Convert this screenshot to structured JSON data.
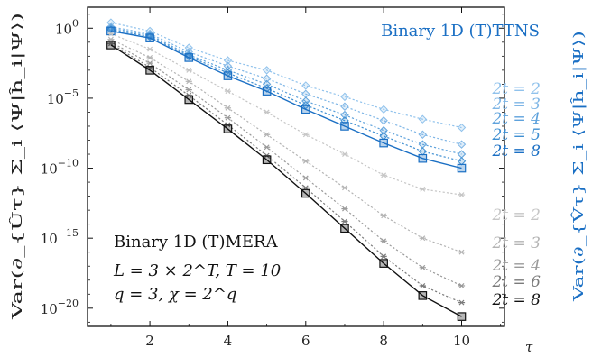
{
  "chart_data": {
    "type": "line",
    "xlabel": "τ",
    "ylabel_left": "Var(∂_{Ûτ} Σ_i ⟨Ψ|ĥ_i|Ψ⟩)",
    "ylabel_right": "Var(∂_{V̂τ} Σ_i ⟨Ψ|ĥ_i|Ψ⟩)",
    "xlim": [
      0.4,
      11.1
    ],
    "ylim_log10": [
      -21.3,
      1.5
    ],
    "log_y": true,
    "x_ticks": [
      2,
      4,
      6,
      8,
      10
    ],
    "y_ticks": [
      {
        "exp": 0,
        "label_base": "10",
        "label_exp": "0"
      },
      {
        "exp": -5,
        "label_base": "10",
        "label_exp": "−5"
      },
      {
        "exp": -10,
        "label_base": "10",
        "label_exp": "−10"
      },
      {
        "exp": -15,
        "label_base": "10",
        "label_exp": "−15"
      },
      {
        "exp": -20,
        "label_base": "10",
        "label_exp": "−20"
      }
    ],
    "x": [
      1,
      2,
      3,
      4,
      5,
      6,
      7,
      8,
      9,
      10
    ],
    "series": [
      {
        "group": "ttns",
        "label": "2t = 2",
        "color": "#90c2ec",
        "style": "dotted",
        "marker": "diamond",
        "log10_values": [
          0.4,
          -0.2,
          -1.4,
          -2.3,
          -3.0,
          -4.1,
          -4.9,
          -5.8,
          -6.5,
          -7.1
        ]
      },
      {
        "group": "ttns",
        "label": "2t = 3",
        "color": "#7fb6e6",
        "style": "dotted",
        "marker": "diamond",
        "log10_values": [
          0.1,
          -0.4,
          -1.7,
          -2.7,
          -3.6,
          -4.7,
          -5.6,
          -6.6,
          -7.6,
          -8.3
        ]
      },
      {
        "group": "ttns",
        "label": "2t = 4",
        "color": "#5ea2dc",
        "style": "dotted",
        "marker": "diamond",
        "log10_values": [
          0.0,
          -0.5,
          -1.9,
          -3.0,
          -4.0,
          -5.2,
          -6.2,
          -7.3,
          -8.3,
          -9.0
        ]
      },
      {
        "group": "ttns",
        "label": "2t = 5",
        "color": "#3f8fd2",
        "style": "dotted",
        "marker": "diamond",
        "log10_values": [
          -0.1,
          -0.6,
          -2.0,
          -3.2,
          -4.3,
          -5.5,
          -6.6,
          -7.7,
          -8.8,
          -9.5
        ]
      },
      {
        "group": "ttns",
        "label": "2t = 8",
        "color": "#1a6fc4",
        "style": "solid",
        "marker": "square",
        "log10_values": [
          -0.2,
          -0.7,
          -2.1,
          -3.4,
          -4.5,
          -5.8,
          -7.0,
          -8.2,
          -9.3,
          -10.0
        ]
      },
      {
        "group": "mera",
        "label": "2t = 2",
        "color": "#c6c6c6",
        "style": "dotted",
        "marker": "star",
        "log10_values": [
          -0.4,
          -1.5,
          -3.0,
          -4.5,
          -6.0,
          -7.6,
          -9.0,
          -10.5,
          -11.5,
          -11.9
        ]
      },
      {
        "group": "mera",
        "label": "2t = 3",
        "color": "#b4b4b4",
        "style": "dotted",
        "marker": "star",
        "log10_values": [
          -0.8,
          -2.1,
          -3.8,
          -5.7,
          -7.6,
          -9.5,
          -11.4,
          -13.4,
          -15.0,
          -16.0
        ]
      },
      {
        "group": "mera",
        "label": "2t = 4",
        "color": "#9a9a9a",
        "style": "dotted",
        "marker": "star",
        "log10_values": [
          -1.0,
          -2.5,
          -4.4,
          -6.4,
          -8.5,
          -10.7,
          -12.9,
          -15.2,
          -17.1,
          -18.4
        ]
      },
      {
        "group": "mera",
        "label": "2t = 6",
        "color": "#7a7a7a",
        "style": "dotted",
        "marker": "star",
        "log10_values": [
          -1.1,
          -2.8,
          -4.8,
          -6.9,
          -9.1,
          -11.4,
          -13.8,
          -16.3,
          -18.4,
          -19.6
        ]
      },
      {
        "group": "mera",
        "label": "2t = 8",
        "color": "#111111",
        "style": "solid",
        "marker": "square",
        "log10_values": [
          -1.2,
          -3.0,
          -5.1,
          -7.2,
          -9.4,
          -11.8,
          -14.3,
          -16.8,
          -19.1,
          -20.6
        ]
      }
    ],
    "annotations": {
      "ttns_title": "Binary 1D (T)TTNS",
      "mera_title": "Binary 1D (T)MERA",
      "mera_params_line1": "L = 3 × 2^T, T = 10",
      "mera_params_line2": "q = 3, χ = 2^q"
    },
    "colors": {
      "ttns_accent": "#1a6fc4",
      "mera_accent": "#111111"
    }
  }
}
